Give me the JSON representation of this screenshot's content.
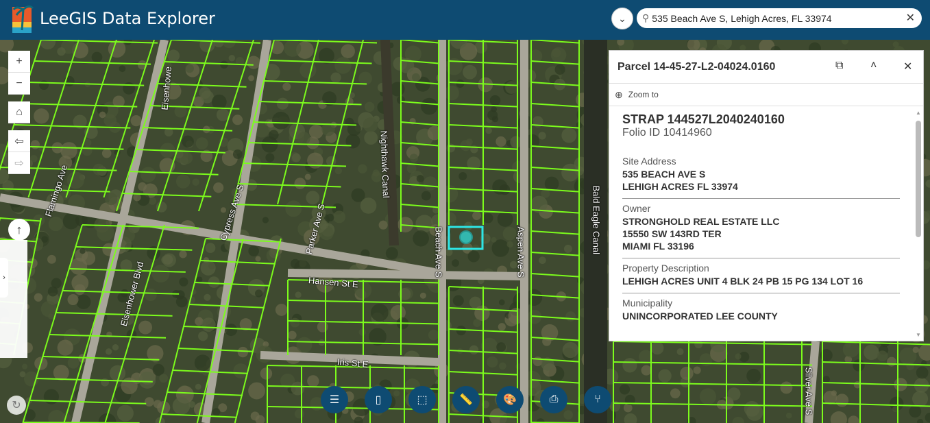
{
  "header": {
    "title": "LeeGIS Data Explorer",
    "logo": "palm-tree-sunset-logo"
  },
  "search": {
    "value": "535 Beach Ave S, Lehigh Acres, FL 33974",
    "icon": "search-icon",
    "clear_icon": "close-icon",
    "dropdown_icon": "chevron-down-icon"
  },
  "map": {
    "labels": [
      "Flamingo Ave",
      "Eisenhower Blvd",
      "Eisenhowe",
      "Cypress Ave S",
      "Parker Ave S",
      "Nighthawk Canal",
      "Beach Ave S",
      "Aspen Ave S",
      "Bald Eagle Canal",
      "Hansen St E",
      "Iris St E",
      "Silver Ave S"
    ],
    "parcel_color": "#7cfc1c",
    "selection_color": "#2ee6e6"
  },
  "controls": {
    "zoom_in": "+",
    "zoom_out": "−",
    "home": "⌂",
    "back": "⇦",
    "forward": "⇨",
    "compass": "↑",
    "expand": "›",
    "refresh": "↻"
  },
  "toolbar": [
    {
      "icon": "layer-list-icon",
      "glyph": "☰"
    },
    {
      "icon": "bookmark-icon",
      "glyph": "▯"
    },
    {
      "icon": "select-icon",
      "glyph": "⬚"
    },
    {
      "icon": "measure-icon",
      "glyph": "📏"
    },
    {
      "icon": "draw-icon",
      "glyph": "🎨"
    },
    {
      "icon": "print-icon",
      "glyph": "⎙"
    },
    {
      "icon": "share-icon",
      "glyph": "⑂"
    }
  ],
  "popup": {
    "title": "Parcel 14-45-27-L2-04024.0160",
    "zoom_to": "Zoom to",
    "strap": "STRAP 144527L2040240160",
    "folio": "Folio ID 10414960",
    "sections": [
      {
        "label": "Site Address",
        "lines": [
          "535 BEACH AVE S",
          "LEHIGH ACRES FL 33974"
        ]
      },
      {
        "label": "Owner",
        "lines": [
          "STRONGHOLD REAL ESTATE LLC",
          "15550 SW 143RD TER",
          "MIAMI FL 33196"
        ]
      },
      {
        "label": "Property Description",
        "lines": [
          "LEHIGH ACRES UNIT 4 BLK 24 PB 15 PG 134 LOT 16"
        ]
      },
      {
        "label": "Municipality",
        "lines": [
          "UNINCORPORATED LEE COUNTY"
        ]
      }
    ]
  }
}
